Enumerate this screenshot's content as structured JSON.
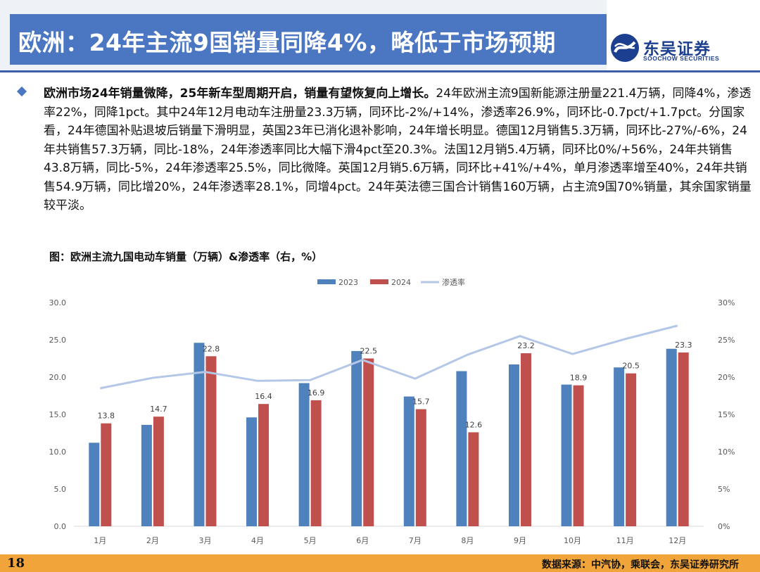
{
  "header": {
    "title": "欧洲：24年主流9国销量同降4%，略低于市场预期",
    "logo_name": "东吴证券",
    "logo_en": "SOOCHOW SECURITIES"
  },
  "summary": {
    "lead": "欧洲市场24年销量微降，25年新车型周期开启，销量有望恢复向上增长。",
    "body": "24年欧洲主流9国新能源注册量221.4万辆，同降4%，渗透率22%，同降1pct。其中24年12月电动车注册量23.3万辆，同环比-2%/+14%，渗透率26.9%，同环比-0.7pct/+1.7pct。分国家看，24年德国补贴退坡后销量下滑明显，英国23年已消化退补影响，24年增长明显。德国12月销售5.3万辆，同环比-27%/-6%，24年共销售57.3万辆，同比-18%，24年渗透率同比大幅下滑4pct至20.3%。法国12月销5.4万辆，同环比0%/+56%，24年共销售43.8万辆，同比-5%，24年渗透率25.5%，同比微降。英国12月销5.6万辆，同环比+41%/+4%，单月渗透率增至40%，24年共销售54.9万辆，同比增20%，24年渗透率28.1%，同增4pct。24年英法德三国合计销售160万辆，占主流9国70%销量，其余国家销量较平淡。"
  },
  "figure": {
    "title": "图：欧洲主流九国电动车销量（万辆）&渗透率（右，%）"
  },
  "chart_data": {
    "type": "bar",
    "categories": [
      "1月",
      "2月",
      "3月",
      "4月",
      "5月",
      "6月",
      "7月",
      "8月",
      "9月",
      "10月",
      "11月",
      "12月"
    ],
    "series": [
      {
        "name": "2023",
        "type": "bar",
        "axis": "left",
        "color": "#4f81bd",
        "values": [
          11.2,
          13.6,
          24.6,
          14.6,
          19.2,
          23.5,
          17.4,
          20.8,
          21.7,
          19.0,
          21.3,
          23.8
        ]
      },
      {
        "name": "2024",
        "type": "bar",
        "axis": "left",
        "color": "#c0504d",
        "values": [
          13.8,
          14.7,
          22.8,
          16.4,
          16.9,
          22.5,
          15.7,
          12.6,
          23.2,
          18.9,
          20.5,
          23.3
        ]
      },
      {
        "name": "渗透率",
        "type": "line",
        "axis": "right",
        "color": "#b4c7e7",
        "values": [
          18.5,
          19.9,
          20.7,
          19.5,
          19.6,
          22.3,
          19.8,
          23.0,
          25.5,
          23.1,
          25.1,
          26.9
        ]
      }
    ],
    "data_labels_series": "2024",
    "y_left": {
      "min": 0,
      "max": 30,
      "ticks": [
        "0.0",
        "5.0",
        "10.0",
        "15.0",
        "20.0",
        "25.0",
        "30.0"
      ]
    },
    "y_right": {
      "min": 0,
      "max": 30,
      "ticks": [
        "0%",
        "5%",
        "10%",
        "15%",
        "20%",
        "25%",
        "30%"
      ]
    },
    "legend_position": "top-center",
    "grid": false
  },
  "footer": {
    "page": "18",
    "source": "数据来源：中汽协，乘联会，东吴证券研究所"
  }
}
